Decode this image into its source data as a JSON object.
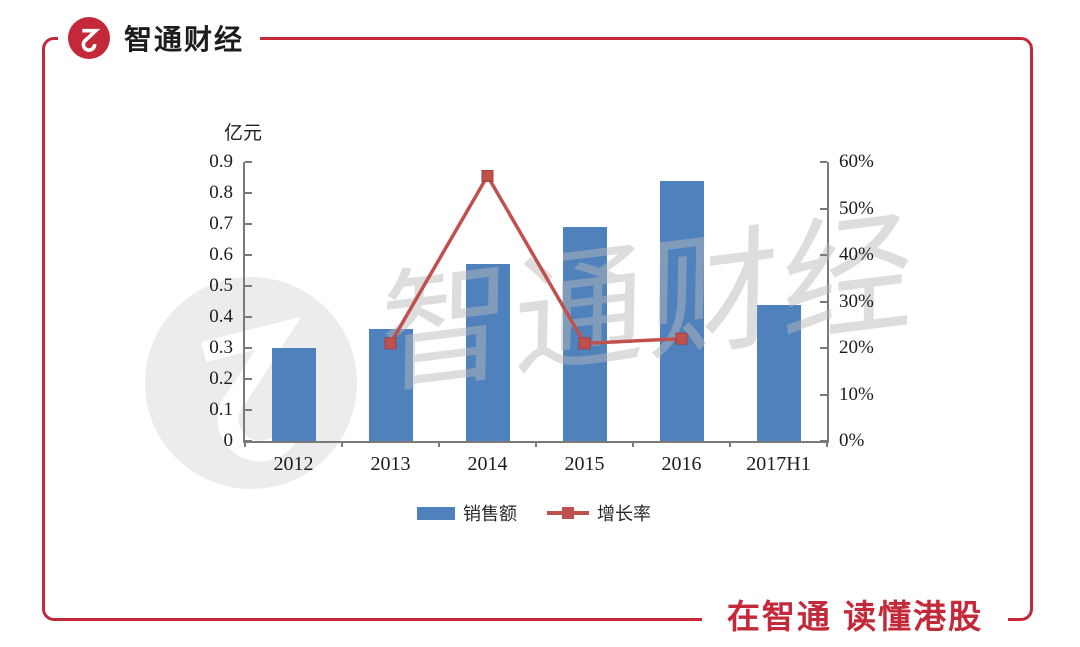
{
  "brand": {
    "name": "智通财经"
  },
  "footer": {
    "slogan": "在智通 读懂港股"
  },
  "watermark": {
    "text": "智通财经"
  },
  "colors": {
    "brand_red": "#c4293a",
    "bar_blue": "#4f81bd",
    "line_red": "#c0504d",
    "axis_gray": "#7a7a7a",
    "watermark_gray": "#ececec"
  },
  "chart_data": {
    "type": "bar+line",
    "title": "",
    "categories": [
      "2012",
      "2013",
      "2014",
      "2015",
      "2016",
      "2017H1"
    ],
    "series": [
      {
        "name": "销售额",
        "type": "bar",
        "axis": "left",
        "unit": "亿元",
        "values": [
          0.3,
          0.36,
          0.57,
          0.69,
          0.84,
          0.44
        ]
      },
      {
        "name": "增长率",
        "type": "line",
        "axis": "right",
        "unit": "%",
        "values": [
          null,
          21,
          57,
          21,
          22,
          null
        ]
      }
    ],
    "left_axis": {
      "label": "亿元",
      "min": 0,
      "max": 0.9,
      "ticks": [
        "0",
        "0.1",
        "0.2",
        "0.3",
        "0.4",
        "0.5",
        "0.6",
        "0.7",
        "0.8",
        "0.9"
      ]
    },
    "right_axis": {
      "min": 0,
      "max": 60,
      "ticks": [
        "0%",
        "10%",
        "20%",
        "30%",
        "40%",
        "50%",
        "60%"
      ]
    },
    "legend": {
      "position": "bottom",
      "items": [
        "销售额",
        "增长率"
      ]
    },
    "grid": false
  }
}
